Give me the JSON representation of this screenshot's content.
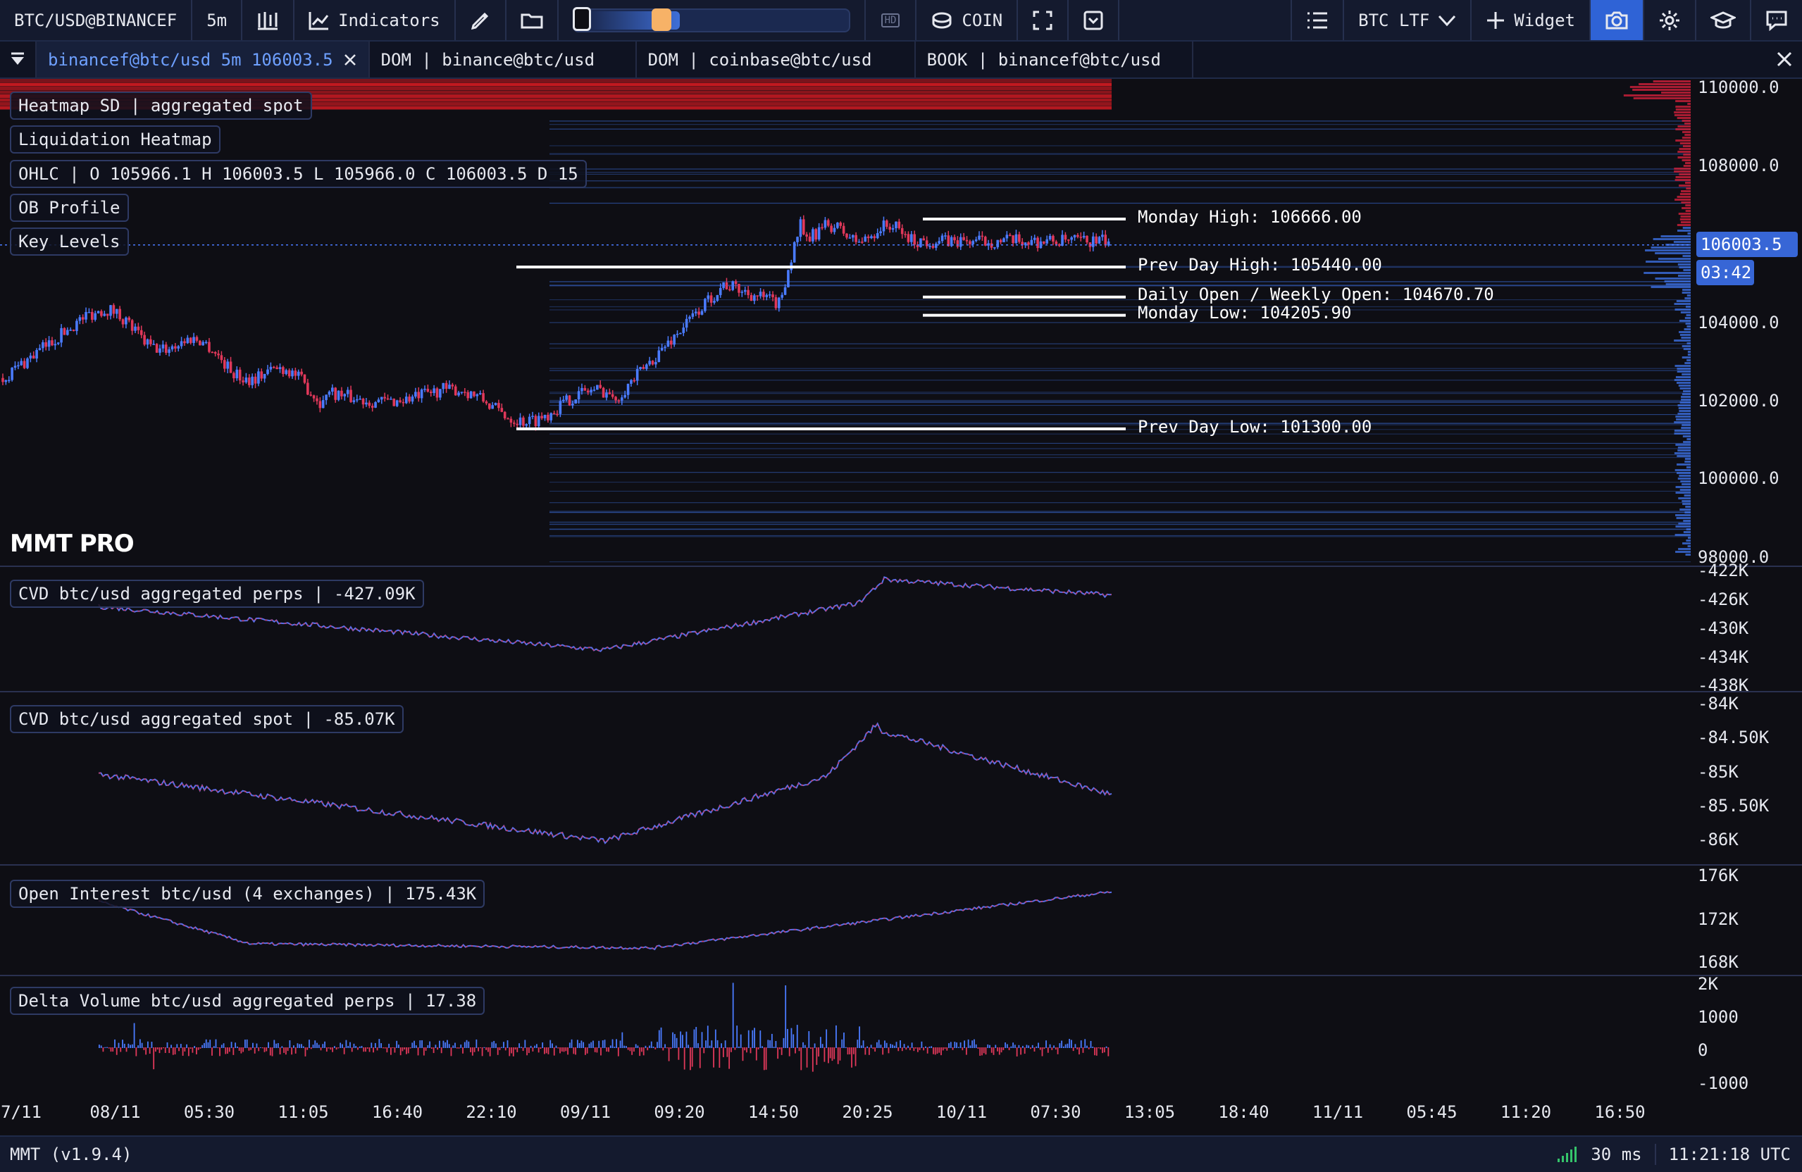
{
  "toolbar": {
    "symbol": "BTC/USD@BINANCEF",
    "timeframe": "5m",
    "indicators": "Indicators",
    "coin": "COIN",
    "btc_ltf": "BTC LTF",
    "widget": "Widget",
    "hd": "HD"
  },
  "tabs": [
    {
      "label": "binancef@btc/usd 5m 106003.5"
    },
    {
      "label": "DOM | binance@btc/usd"
    },
    {
      "label": "DOM | coinbase@btc/usd"
    },
    {
      "label": "BOOK | binancef@btc/usd"
    }
  ],
  "main_panel": {
    "legends": [
      "Heatmap SD | aggregated spot",
      "Liquidation Heatmap",
      "OHLC | O 105966.1 H 106003.5 L 105966.0 C 106003.5 D 15",
      "OB Profile",
      "Key Levels"
    ],
    "brand": "MMT PRO",
    "price_axis": [
      "110000.0",
      "108000.0",
      "104000.0",
      "102000.0",
      "100000.0",
      "98000.0"
    ],
    "current_price": "106003.5",
    "countdown": "03:42",
    "key_levels": [
      {
        "label": "Monday High: 106666.00",
        "price": 106666.0
      },
      {
        "label": "Prev Day High: 105440.00",
        "price": 105440.0
      },
      {
        "label": "Daily Open / Weekly Open: 104670.70",
        "price": 104670.7
      },
      {
        "label": "Monday Low: 104205.90",
        "price": 104205.9
      },
      {
        "label": "Prev Day Low: 101300.00",
        "price": 101300.0
      }
    ],
    "colors": {
      "up": "#4a7bff",
      "down": "#e0385a",
      "heat": "#d11a22",
      "levels": "#ffffff"
    }
  },
  "sub_panels": [
    {
      "legend": "CVD btc/usd aggregated perps | -427.09K",
      "axis": [
        "-422K",
        "-426K",
        "-430K",
        "-434K",
        "-438K"
      ]
    },
    {
      "legend": "CVD btc/usd aggregated spot | -85.07K",
      "axis": [
        "-84K",
        "-84.50K",
        "-85K",
        "-85.50K",
        "-86K"
      ]
    },
    {
      "legend": "Open Interest btc/usd (4 exchanges) | 175.43K",
      "axis": [
        "176K",
        "172K",
        "168K"
      ]
    },
    {
      "legend": "Delta Volume btc/usd aggregated perps | 17.38",
      "axis": [
        "2K",
        "1000",
        "0",
        "-1000"
      ]
    }
  ],
  "time_axis": [
    "7/11",
    "08/11",
    "05:30",
    "11:05",
    "16:40",
    "22:10",
    "09/11",
    "09:20",
    "14:50",
    "20:25",
    "10/11",
    "07:30",
    "13:05",
    "18:40",
    "11/11",
    "05:45",
    "11:20",
    "16:50"
  ],
  "status": {
    "version": "MMT (v1.9.4)",
    "latency": "30 ms",
    "clock": "11:21:18 UTC"
  }
}
